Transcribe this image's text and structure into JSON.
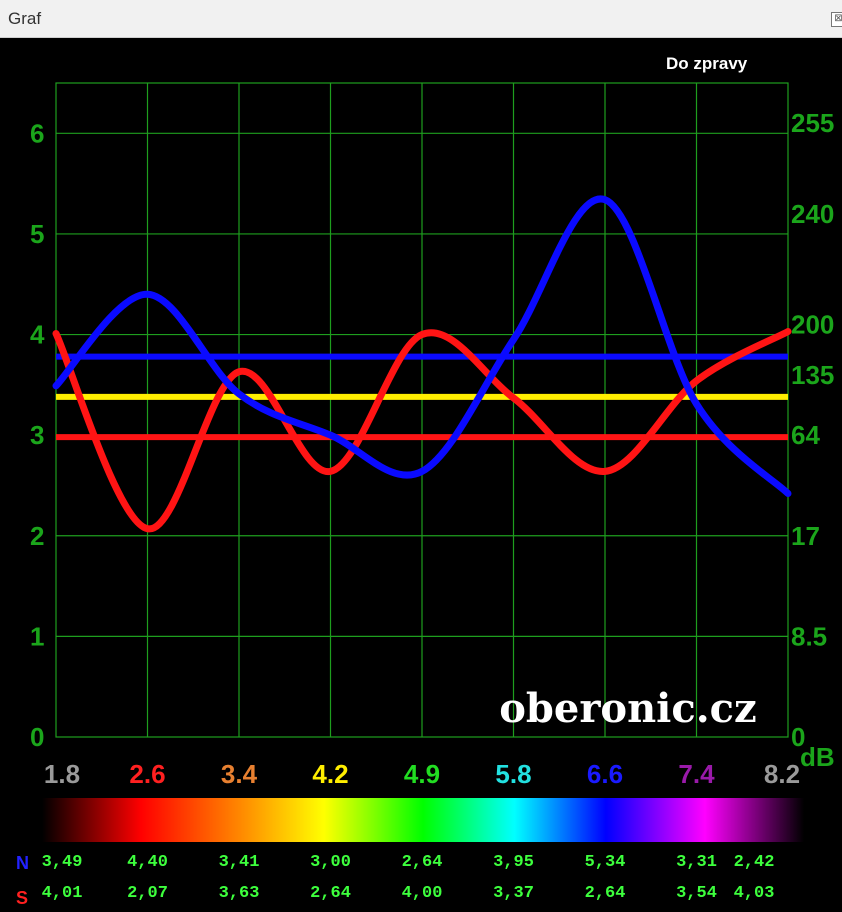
{
  "window": {
    "title": "Graf",
    "close_glyph": "⊠"
  },
  "report_button": "Do zpravy",
  "watermark": "oberonic.cz",
  "colors": {
    "background": "#000000",
    "grid": "#1e9e1e",
    "axis_text": "#1ba51b",
    "series_n": "#0a0aff",
    "series_s": "#ff1414",
    "reference_yellow": "#ffee00",
    "values_text": "#3dff3d"
  },
  "chart_data": {
    "type": "line",
    "categories": [
      "1.8",
      "2.6",
      "3.4",
      "4.2",
      "4.9",
      "5.8",
      "6.6",
      "7.4",
      "8.2"
    ],
    "category_colors": [
      "#9a9a9a",
      "#ff2020",
      "#e88030",
      "#ffee00",
      "#22dd22",
      "#22e0e0",
      "#1a1aff",
      "#9a1aaa",
      "#9a9a9a"
    ],
    "ylim": [
      0,
      6.5
    ],
    "y_ticks": [
      0,
      1,
      2,
      3,
      4,
      5,
      6
    ],
    "y2_ticks": [
      "0",
      "8.5",
      "17",
      "64",
      "135",
      "200",
      "240",
      "255"
    ],
    "y2_label": "dB",
    "grid": true,
    "series": [
      {
        "name": "N",
        "color": "#0a0aff",
        "values": [
          3.49,
          4.4,
          3.41,
          3.0,
          2.64,
          3.95,
          5.34,
          3.31,
          2.42
        ]
      },
      {
        "name": "S",
        "color": "#ff1414",
        "values": [
          4.01,
          2.07,
          3.63,
          2.64,
          4.0,
          3.37,
          2.64,
          3.54,
          4.03
        ]
      }
    ],
    "reference_lines": [
      {
        "color": "#0a0aff",
        "value": 3.78
      },
      {
        "color": "#ffee00",
        "value": 3.38
      },
      {
        "color": "#ff1414",
        "value": 2.98
      }
    ]
  },
  "table": {
    "rows": [
      {
        "label": "N",
        "label_color": "#2222ff",
        "values": [
          "3,49",
          "4,40",
          "3,41",
          "3,00",
          "2,64",
          "3,95",
          "5,34",
          "3,31",
          "2,42"
        ]
      },
      {
        "label": "S",
        "label_color": "#ff2020",
        "values": [
          "4,01",
          "2,07",
          "3,63",
          "2,64",
          "4,00",
          "3,37",
          "2,64",
          "3,54",
          "4,03"
        ]
      }
    ]
  }
}
